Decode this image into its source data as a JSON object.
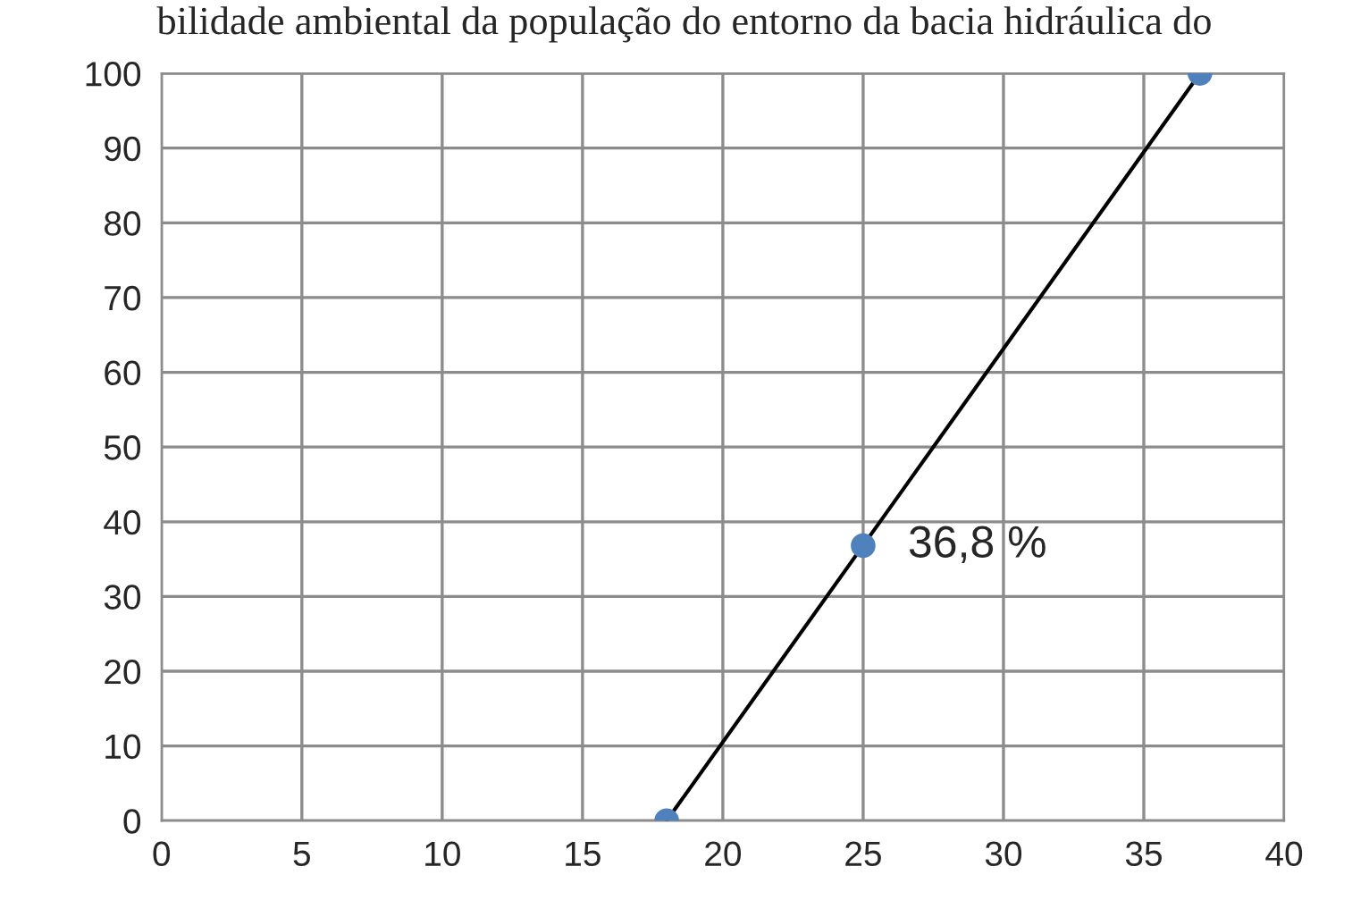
{
  "chart_data": {
    "type": "scatter",
    "title": "bilidade ambiental da população do entorno da bacia hidráulica do",
    "series": [
      {
        "x": [
          18,
          25,
          37
        ],
        "values": [
          0,
          36.8,
          100
        ],
        "color": "#4f81bd",
        "marker": "circle"
      },
      {
        "type": "line",
        "x": [
          18,
          37
        ],
        "values": [
          0,
          100
        ],
        "color": "#000000",
        "marker": "none",
        "line_style": "solid"
      }
    ],
    "annotations": [
      {
        "text": "36,8 %",
        "x": 25,
        "y": 36.8
      }
    ],
    "xlim": [
      0,
      40
    ],
    "xticks": [
      0,
      5,
      10,
      15,
      20,
      25,
      30,
      35,
      40
    ],
    "ylim": [
      0,
      100
    ],
    "yticks": [
      0,
      10,
      20,
      30,
      40,
      50,
      60,
      70,
      80,
      90,
      100
    ],
    "grid": true,
    "legend": false
  }
}
